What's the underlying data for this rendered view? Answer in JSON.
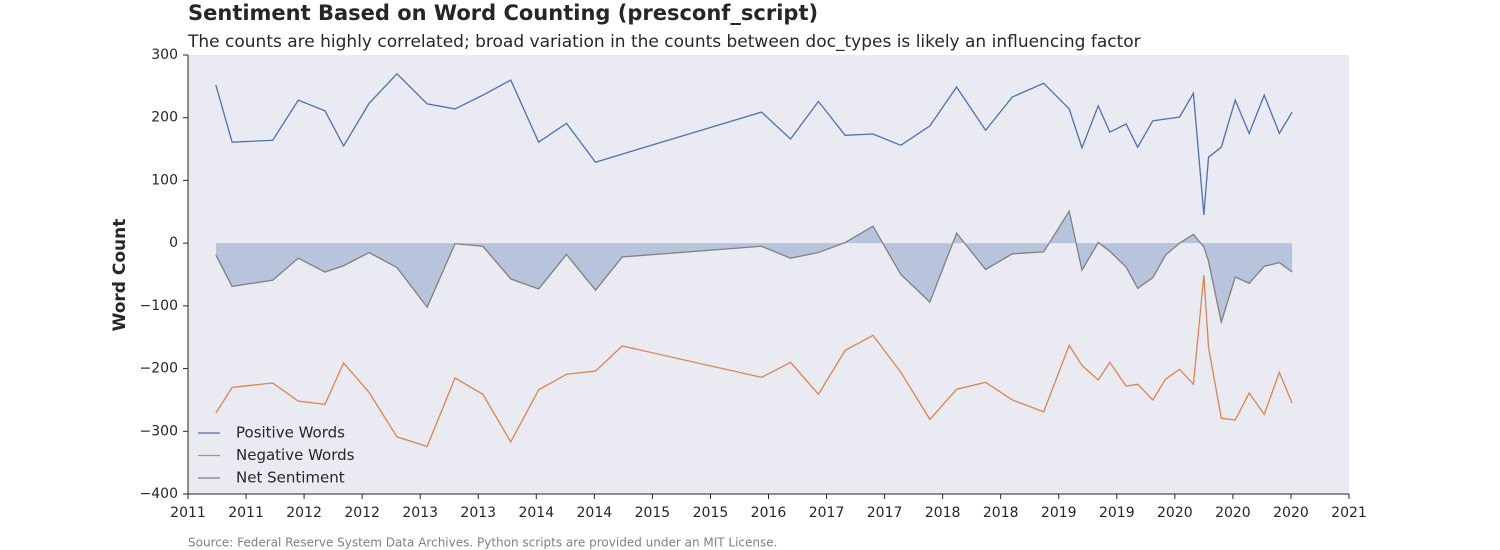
{
  "chart_data": {
    "type": "line",
    "title": "Sentiment Based on Word Counting (presconf_script)",
    "subtitle": "The counts are highly correlated; broad variation in the counts between doc_types is likely an influencing factor",
    "ylabel": "Word Count",
    "source": "Source: Federal Reserve System Data Archives. Python scripts are provided under an MIT License.",
    "x": [
      2011.24,
      2011.38,
      2011.73,
      2011.95,
      2012.18,
      2012.34,
      2012.56,
      2012.8,
      2013.06,
      2013.3,
      2013.54,
      2013.78,
      2014.02,
      2014.26,
      2014.51,
      2014.74,
      2015.94,
      2016.19,
      2016.43,
      2016.66,
      2016.9,
      2017.14,
      2017.39,
      2017.62,
      2017.87,
      2018.1,
      2018.37,
      2018.59,
      2018.7,
      2018.84,
      2018.94,
      2019.08,
      2019.18,
      2019.31,
      2019.42,
      2019.54,
      2019.66,
      2019.75,
      2019.79,
      2019.9,
      2020.02,
      2020.14,
      2020.27,
      2020.4,
      2020.51
    ],
    "series": [
      {
        "name": "Positive Words",
        "color": "#4c72b0",
        "values": [
          252,
          161,
          164,
          228,
          211,
          155,
          223,
          270,
          222,
          214,
          236,
          260,
          161,
          191,
          129,
          142,
          209,
          166,
          226,
          172,
          174,
          156,
          187,
          249,
          180,
          233,
          255,
          214,
          152,
          219,
          177,
          190,
          153,
          195,
          198,
          201,
          239,
          45,
          137,
          153,
          228,
          175,
          236,
          175,
          209
        ]
      },
      {
        "name": "Negative Words",
        "color": "#dd8452",
        "values": [
          -271,
          -230,
          -223,
          -252,
          -257,
          -191,
          -238,
          -309,
          -324,
          -215,
          -241,
          -317,
          -234,
          -209,
          -204,
          -164,
          -214,
          -190,
          -241,
          -171,
          -147,
          -206,
          -281,
          -233,
          -222,
          -250,
          -269,
          -163,
          -195,
          -218,
          -190,
          -228,
          -225,
          -250,
          -217,
          -201,
          -225,
          -51,
          -166,
          -279,
          -282,
          -239,
          -273,
          -206,
          -255
        ]
      },
      {
        "name": "Net Sentiment",
        "color": "#808080",
        "fill": true,
        "fill_color": "#b8c3dc",
        "values": [
          -19,
          -69,
          -59,
          -24,
          -46,
          -36,
          -15,
          -39,
          -102,
          -1,
          -5,
          -57,
          -73,
          -18,
          -75,
          -22,
          -5,
          -24,
          -15,
          1,
          27,
          -50,
          -94,
          16,
          -42,
          -17,
          -14,
          51,
          -43,
          1,
          -13,
          -38,
          -72,
          -55,
          -19,
          0,
          14,
          -6,
          -29,
          -126,
          -54,
          -64,
          -37,
          -31,
          -46
        ]
      }
    ],
    "xlim": [
      2011,
      2021
    ],
    "xticks": [
      {
        "value": 2011,
        "label": "2011"
      },
      {
        "value": 2011.5,
        "label": "2011"
      },
      {
        "value": 2012,
        "label": "2012"
      },
      {
        "value": 2012.5,
        "label": "2012"
      },
      {
        "value": 2013,
        "label": "2013"
      },
      {
        "value": 2013.5,
        "label": "2013"
      },
      {
        "value": 2014,
        "label": "2014"
      },
      {
        "value": 2014.5,
        "label": "2014"
      },
      {
        "value": 2015,
        "label": "2015"
      },
      {
        "value": 2015.5,
        "label": "2015"
      },
      {
        "value": 2016,
        "label": "2016"
      },
      {
        "value": 2016.5,
        "label": "2017"
      },
      {
        "value": 2017,
        "label": "2017"
      },
      {
        "value": 2017.5,
        "label": "2018"
      },
      {
        "value": 2018,
        "label": "2018"
      },
      {
        "value": 2018.5,
        "label": "2019"
      },
      {
        "value": 2019,
        "label": "2019"
      },
      {
        "value": 2019.5,
        "label": "2020"
      },
      {
        "value": 2020,
        "label": "2020"
      },
      {
        "value": 2020.5,
        "label": "2020"
      },
      {
        "value": 2021,
        "label": "2021"
      }
    ],
    "ylim": [
      -400,
      300
    ],
    "yticks": [
      {
        "value": -400,
        "label": "−400"
      },
      {
        "value": -300,
        "label": "−300"
      },
      {
        "value": -200,
        "label": "−200"
      },
      {
        "value": -100,
        "label": "−100"
      },
      0,
      100,
      200,
      300
    ],
    "grid": false,
    "legend": "lower left",
    "background": "#eaeaf2"
  }
}
